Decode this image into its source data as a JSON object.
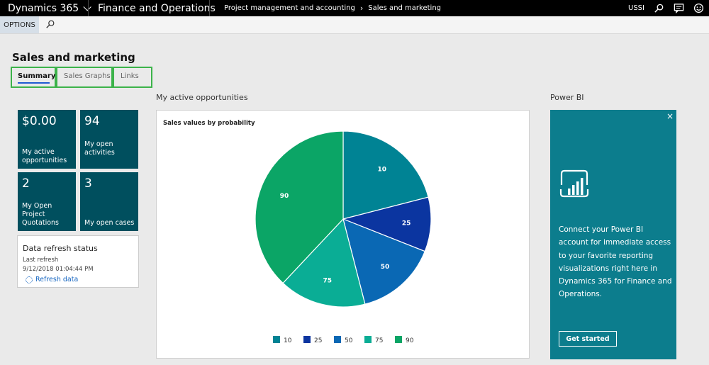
{
  "topbar": {
    "app_name": "Dynamics 365",
    "module_name": "Finance and Operations",
    "breadcrumb": [
      "Project management and accounting",
      "Sales and marketing"
    ],
    "company": "USSI"
  },
  "actionbar": {
    "options_label": "OPTIONS"
  },
  "page": {
    "title": "Sales and marketing"
  },
  "tabs": [
    {
      "label": "Summary",
      "active": true
    },
    {
      "label": "Sales Graphs",
      "active": false
    },
    {
      "label": "Links",
      "active": false
    }
  ],
  "tiles": [
    {
      "value": "$0.00",
      "label": "My active opportunities"
    },
    {
      "value": "94",
      "label": "My open activities"
    },
    {
      "value": "2",
      "label": "My Open Project Quotations"
    },
    {
      "value": "3",
      "label": "My open cases"
    }
  ],
  "refresh": {
    "title": "Data refresh status",
    "last_label": "Last refresh",
    "timestamp": "9/12/2018 01:04:44 PM",
    "link": "Refresh data"
  },
  "section": {
    "label": "My active opportunities"
  },
  "chart_data": {
    "type": "pie",
    "title": "Sales values by probability",
    "slices": [
      {
        "label": "10",
        "value": 21,
        "color": "#008394"
      },
      {
        "label": "25",
        "value": 10,
        "color": "#0b35a0"
      },
      {
        "label": "50",
        "value": 15,
        "color": "#0a68b4"
      },
      {
        "label": "75",
        "value": 16,
        "color": "#0aad95"
      },
      {
        "label": "90",
        "value": 38,
        "color": "#0ba566"
      }
    ],
    "legend_position": "bottom"
  },
  "powerbi": {
    "label": "Power BI",
    "close": "×",
    "text": "Connect your Power BI account for immediate access to your favorite reporting visualizations right here in Dynamics 365 for Finance and Operations.",
    "button": "Get started"
  }
}
